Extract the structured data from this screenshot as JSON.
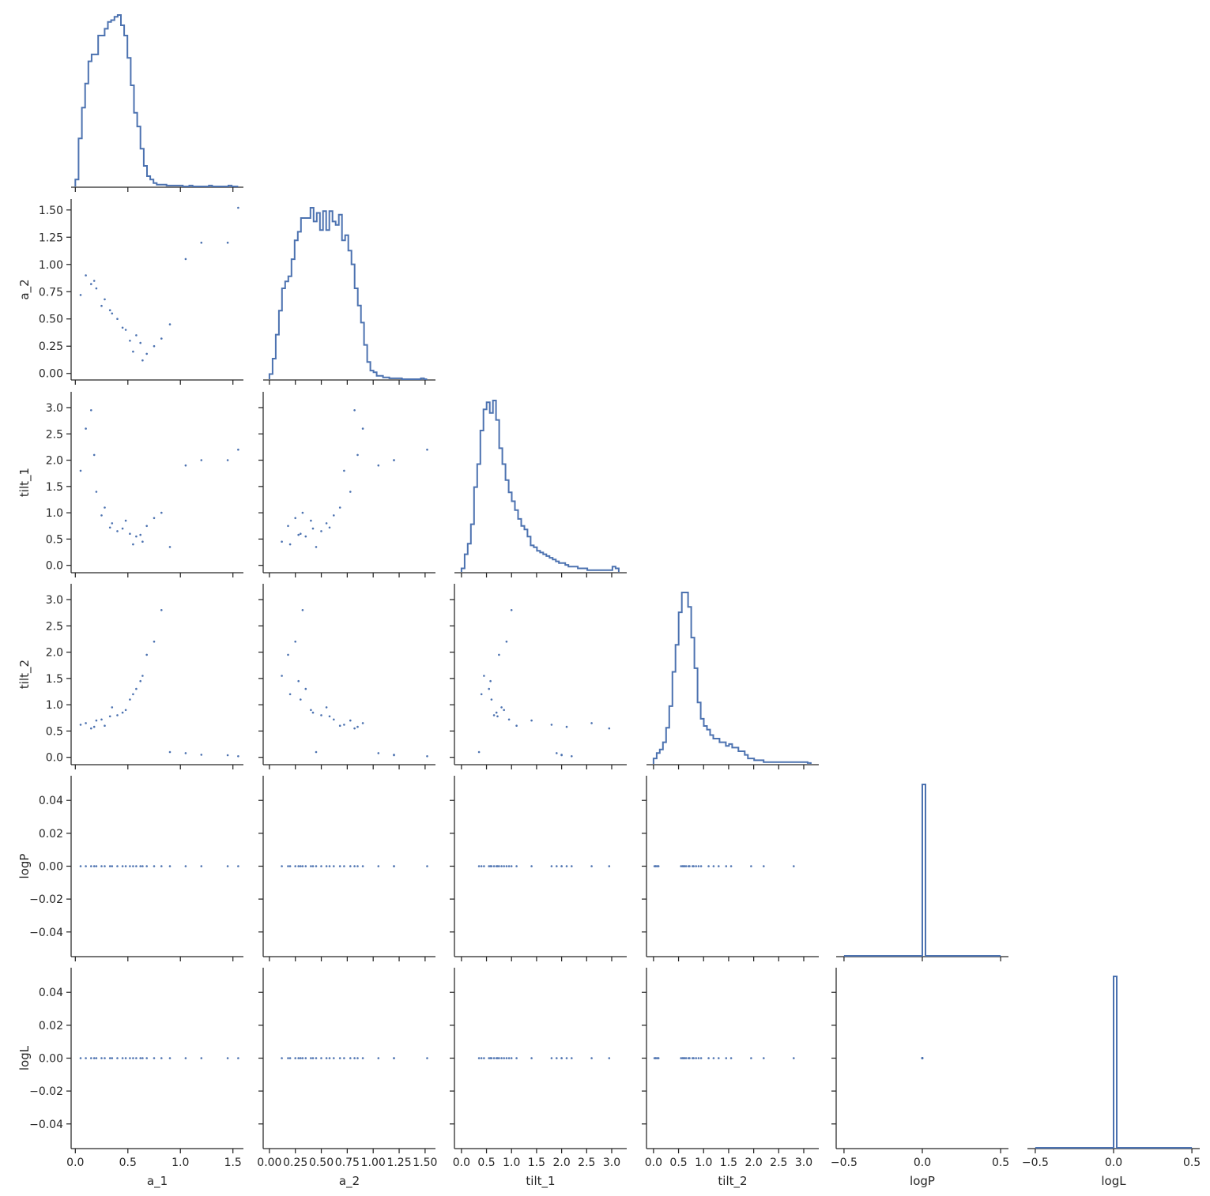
{
  "colors": {
    "series": "#4c72b0",
    "axis": "#262626",
    "background": "#ffffff"
  },
  "chart_data": {
    "type": "pairplot-corner",
    "variables": [
      "a_1",
      "a_2",
      "tilt_1",
      "tilt_2",
      "logP",
      "logL"
    ],
    "axes": {
      "a_1": {
        "lim": [
          -0.04,
          1.6
        ],
        "ticks": [
          0.0,
          0.5,
          1.0,
          1.5
        ],
        "tick_labels": [
          "0.0",
          "0.5",
          "1.0",
          "1.5"
        ]
      },
      "a_2": {
        "lim": [
          -0.06,
          1.6
        ],
        "ticks": [
          0.0,
          0.25,
          0.5,
          0.75,
          1.0,
          1.25,
          1.5
        ],
        "tick_labels": [
          "0.00",
          "0.25",
          "0.50",
          "0.75",
          "1.00",
          "1.25",
          "1.50"
        ]
      },
      "tilt_1": {
        "lim": [
          -0.14,
          3.3
        ],
        "ticks": [
          0.0,
          0.5,
          1.0,
          1.5,
          2.0,
          2.5,
          3.0
        ],
        "tick_labels": [
          "0.0",
          "0.5",
          "1.0",
          "1.5",
          "2.0",
          "2.5",
          "3.0"
        ]
      },
      "tilt_2": {
        "lim": [
          -0.14,
          3.3
        ],
        "ticks": [
          0.0,
          0.5,
          1.0,
          1.5,
          2.0,
          2.5,
          3.0
        ],
        "tick_labels": [
          "0.0",
          "0.5",
          "1.0",
          "1.5",
          "2.0",
          "2.5",
          "3.0"
        ]
      },
      "logP": {
        "lim": [
          -0.055,
          0.055
        ],
        "ticks": [
          -0.04,
          -0.02,
          0.0,
          0.02,
          0.04
        ],
        "tick_labels": [
          "−0.04",
          "−0.02",
          "0.00",
          "0.02",
          "0.04"
        ]
      },
      "logL": {
        "lim": [
          -0.055,
          0.055
        ],
        "ticks": [
          -0.04,
          -0.02,
          0.0,
          0.02,
          0.04
        ],
        "tick_labels": [
          "−0.04",
          "−0.02",
          "0.00",
          "0.02",
          "0.04"
        ]
      }
    },
    "x_axes": {
      "logP": {
        "lim": [
          -0.55,
          0.55
        ],
        "ticks": [
          -0.5,
          0.0,
          0.5
        ],
        "tick_labels": [
          "−0.5",
          "0.0",
          "0.5"
        ]
      },
      "logL": {
        "lim": [
          -0.55,
          0.55
        ],
        "ticks": [
          -0.5,
          0.0,
          0.5
        ],
        "tick_labels": [
          "−0.5",
          "0.0",
          "0.5"
        ]
      }
    },
    "histograms": {
      "a_1": {
        "bin_range": [
          0.0,
          1.55
        ],
        "bins": 50,
        "counts": [
          4,
          28,
          46,
          60,
          73,
          77,
          77,
          88,
          88,
          92,
          96,
          97,
          99,
          100,
          94,
          88,
          75,
          59,
          43,
          35,
          22,
          12,
          6,
          4,
          2,
          1,
          1,
          1,
          0.5,
          0.5,
          0.5,
          0.5,
          0.5,
          0,
          0,
          0.5,
          0,
          0,
          0,
          0,
          0,
          0.5,
          0,
          0,
          0,
          0,
          0,
          0.5,
          0,
          0
        ]
      },
      "a_2": {
        "bin_range": [
          0.0,
          1.52
        ],
        "bins": 50,
        "counts": [
          3,
          12,
          26,
          40,
          53,
          57,
          60,
          70,
          81,
          86,
          94,
          94,
          94,
          100,
          92,
          97,
          87,
          98,
          87,
          98,
          92,
          90,
          96,
          81,
          84,
          75,
          67,
          53,
          43,
          33,
          20,
          10,
          5,
          4,
          2,
          2,
          1,
          1,
          0.5,
          0.5,
          0.5,
          0.5,
          0,
          0,
          0,
          0,
          0,
          0,
          0.5,
          0
        ]
      },
      "tilt_1": {
        "bin_range": [
          0.0,
          3.14
        ],
        "bins": 50,
        "counts": [
          2,
          10,
          16,
          27,
          48,
          61,
          80,
          92,
          96,
          90,
          97,
          86,
          70,
          61,
          52,
          45,
          40,
          35,
          30,
          26,
          24,
          20,
          15,
          14,
          12,
          11,
          10,
          9,
          8,
          7,
          6,
          5,
          5,
          4,
          3,
          3,
          3,
          2,
          2,
          2,
          1,
          1,
          1,
          1,
          1,
          1,
          1,
          1,
          3,
          2
        ]
      },
      "tilt_2": {
        "bin_range": [
          0.0,
          3.14
        ],
        "bins": 50,
        "counts": [
          3,
          6,
          8,
          12,
          20,
          32,
          51,
          66,
          84,
          95,
          95,
          87,
          70,
          53,
          34,
          25,
          21,
          19,
          16,
          14,
          14,
          12,
          12,
          10,
          11,
          9,
          9,
          7,
          7,
          5,
          3,
          3,
          2,
          2,
          2,
          1,
          1,
          1,
          1,
          1,
          1,
          1,
          1,
          1,
          1,
          1,
          1,
          1,
          1,
          0.5
        ]
      },
      "logP": {
        "bin_range": [
          -0.5,
          0.5
        ],
        "bins": 50,
        "counts": [
          0,
          0,
          0,
          0,
          0,
          0,
          0,
          0,
          0,
          0,
          0,
          0,
          0,
          0,
          0,
          0,
          0,
          0,
          0,
          0,
          0,
          0,
          0,
          0,
          0,
          100,
          0,
          0,
          0,
          0,
          0,
          0,
          0,
          0,
          0,
          0,
          0,
          0,
          0,
          0,
          0,
          0,
          0,
          0,
          0,
          0,
          0,
          0,
          0,
          0
        ]
      },
      "logL": {
        "bin_range": [
          -0.5,
          0.5
        ],
        "bins": 50,
        "counts": [
          0,
          0,
          0,
          0,
          0,
          0,
          0,
          0,
          0,
          0,
          0,
          0,
          0,
          0,
          0,
          0,
          0,
          0,
          0,
          0,
          0,
          0,
          0,
          0,
          0,
          100,
          0,
          0,
          0,
          0,
          0,
          0,
          0,
          0,
          0,
          0,
          0,
          0,
          0,
          0,
          0,
          0,
          0,
          0,
          0,
          0,
          0,
          0,
          0,
          0
        ]
      }
    },
    "samples": [
      [
        0.35,
        0.55,
        0.8,
        0.95,
        0.0,
        0.0
      ],
      [
        0.52,
        0.3,
        0.6,
        1.1,
        0.0,
        0.0
      ],
      [
        0.2,
        0.78,
        1.4,
        0.7,
        0.0,
        0.0
      ],
      [
        0.64,
        0.12,
        0.45,
        1.55,
        0.0,
        0.0
      ],
      [
        0.1,
        0.9,
        2.6,
        0.65,
        0.0,
        0.0
      ],
      [
        0.45,
        0.42,
        0.7,
        0.85,
        0.0,
        0.0
      ],
      [
        0.75,
        0.25,
        0.9,
        2.2,
        0.0,
        0.0
      ],
      [
        0.28,
        0.68,
        1.1,
        0.6,
        0.0,
        0.0
      ],
      [
        0.58,
        0.35,
        0.55,
        1.3,
        0.0,
        0.0
      ],
      [
        0.15,
        0.82,
        2.95,
        0.55,
        0.0,
        0.0
      ],
      [
        0.4,
        0.5,
        0.65,
        0.8,
        0.0,
        0.0
      ],
      [
        0.68,
        0.18,
        0.75,
        1.95,
        0.0,
        0.0
      ],
      [
        0.05,
        0.72,
        1.8,
        0.62,
        0.0,
        0.0
      ],
      [
        0.48,
        0.4,
        0.85,
        0.9,
        0.0,
        0.0
      ],
      [
        0.82,
        0.32,
        1.0,
        2.8,
        0.0,
        0.0
      ],
      [
        0.25,
        0.62,
        0.95,
        0.72,
        0.0,
        0.0
      ],
      [
        0.55,
        0.2,
        0.4,
        1.2,
        0.0,
        0.0
      ],
      [
        0.18,
        0.85,
        2.1,
        0.58,
        0.0,
        0.0
      ],
      [
        0.62,
        0.28,
        0.58,
        1.45,
        0.0,
        0.0
      ],
      [
        0.33,
        0.58,
        0.72,
        0.78,
        0.0,
        0.0
      ],
      [
        0.9,
        0.45,
        0.35,
        0.1,
        0.0,
        0.0
      ],
      [
        1.05,
        1.05,
        1.9,
        0.08,
        0.0,
        0.0
      ],
      [
        1.2,
        1.2,
        2.0,
        0.05,
        0.0,
        0.0
      ],
      [
        1.45,
        1.2,
        2.0,
        0.04,
        0.0,
        0.0
      ],
      [
        1.55,
        1.52,
        2.2,
        0.02,
        0.0,
        0.0
      ]
    ],
    "xlabels": [
      "a_1",
      "a_2",
      "tilt_1",
      "tilt_2",
      "logP",
      "logL"
    ],
    "ylabels": [
      "a_2",
      "tilt_1",
      "tilt_2",
      "logP",
      "logL"
    ]
  }
}
